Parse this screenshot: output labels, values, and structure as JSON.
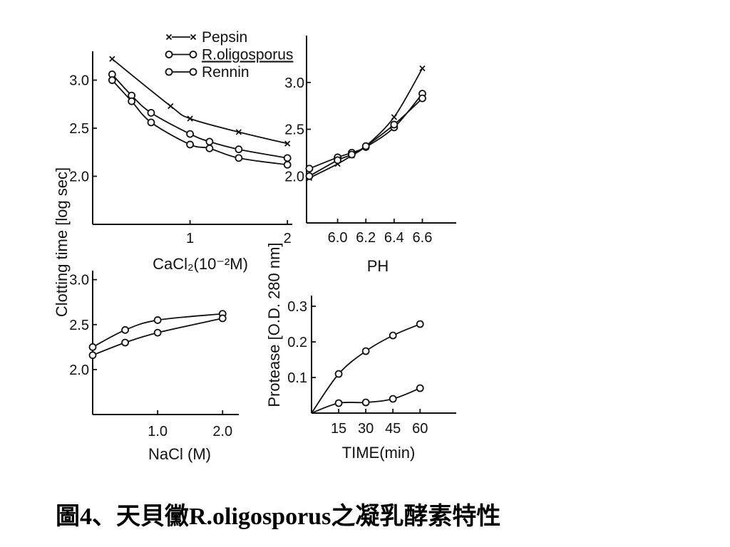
{
  "figure": {
    "shared_ylabel": "Clotting time [log sec]",
    "caption": "圖4、天貝黴R.oligosporus之凝乳酵素特性",
    "ink_color": "#111111",
    "background": "#ffffff"
  },
  "chart_data": [
    {
      "type": "line",
      "xlabel": "CaCl₂(10⁻²M)",
      "xlim": [
        0,
        2.05
      ],
      "ylim": [
        1.5,
        3.3
      ],
      "xticks": [
        1,
        2
      ],
      "xtick_labels": [
        "1",
        "2"
      ],
      "yticks": [
        2.0,
        2.5,
        3.0
      ],
      "ytick_labels": [
        "2.0",
        "2.5",
        "3.0"
      ],
      "grid": false,
      "legend": "top",
      "series": [
        {
          "name": "Pepsin",
          "marker": "x",
          "x": [
            0.2,
            0.8,
            1.0,
            1.5,
            2.0
          ],
          "y": [
            3.22,
            2.73,
            2.6,
            2.46,
            2.34
          ]
        },
        {
          "name": "R.oligosporus",
          "marker": "o",
          "x": [
            0.2,
            0.4,
            0.6,
            1.0,
            1.2,
            1.5,
            2.0
          ],
          "y": [
            3.06,
            2.84,
            2.66,
            2.44,
            2.36,
            2.28,
            2.19
          ]
        },
        {
          "name": "Rennin",
          "marker": "o",
          "x": [
            0.2,
            0.4,
            0.6,
            1.0,
            1.2,
            1.5,
            2.0
          ],
          "y": [
            3.0,
            2.78,
            2.56,
            2.33,
            2.29,
            2.19,
            2.12
          ]
        }
      ]
    },
    {
      "type": "line",
      "xlabel": "PH",
      "xlim": [
        5.78,
        6.84
      ],
      "ylim": [
        1.5,
        3.5
      ],
      "xticks": [
        6.0,
        6.2,
        6.4,
        6.6
      ],
      "xtick_labels": [
        "6.0",
        "6.2",
        "6.4",
        "6.6"
      ],
      "yticks": [
        2.0,
        2.5,
        3.0
      ],
      "ytick_labels": [
        "2.0",
        "2.5",
        "3.0"
      ],
      "grid": false,
      "series": [
        {
          "marker": "x",
          "x": [
            5.8,
            6.0,
            6.1,
            6.2,
            6.4,
            6.6
          ],
          "y": [
            1.98,
            2.13,
            2.22,
            2.32,
            2.63,
            3.15
          ]
        },
        {
          "marker": "o",
          "x": [
            5.8,
            6.0,
            6.1,
            6.2,
            6.4,
            6.6
          ],
          "y": [
            2.08,
            2.2,
            2.25,
            2.31,
            2.52,
            2.88
          ]
        },
        {
          "marker": "o",
          "x": [
            5.8,
            6.0,
            6.1,
            6.2,
            6.4,
            6.6
          ],
          "y": [
            2.0,
            2.17,
            2.23,
            2.32,
            2.55,
            2.83
          ]
        }
      ]
    },
    {
      "type": "line",
      "xlabel": "NaCl (M)",
      "xlim": [
        0,
        2.25
      ],
      "ylim": [
        1.5,
        3.1
      ],
      "xticks": [
        1.0,
        2.0
      ],
      "xtick_labels": [
        "1.0",
        "2.0"
      ],
      "yticks": [
        2.0,
        2.5,
        3.0
      ],
      "ytick_labels": [
        "2.0",
        "2.5",
        "3.0"
      ],
      "grid": false,
      "series": [
        {
          "marker": "o",
          "x": [
            0,
            0.5,
            1.0,
            2.0
          ],
          "y": [
            2.25,
            2.44,
            2.55,
            2.62
          ]
        },
        {
          "marker": "o",
          "x": [
            0,
            0.5,
            1.0,
            2.0
          ],
          "y": [
            2.16,
            2.3,
            2.41,
            2.57
          ]
        }
      ]
    },
    {
      "type": "line",
      "xlabel": "TIME(min)",
      "ylabel": "Protease [O.D. 280 nm]",
      "xlim": [
        0,
        80
      ],
      "ylim": [
        0,
        0.33
      ],
      "xticks": [
        15,
        30,
        45,
        60
      ],
      "xtick_labels": [
        "15",
        "30",
        "45",
        "60"
      ],
      "yticks": [
        0.1,
        0.2,
        0.3
      ],
      "ytick_labels": [
        "0.1",
        "0.2",
        "0.3"
      ],
      "grid": false,
      "series": [
        {
          "marker": "o",
          "x": [
            0,
            15,
            30,
            45,
            60
          ],
          "y": [
            0,
            0.11,
            0.174,
            0.218,
            0.25
          ]
        },
        {
          "marker": "o",
          "x": [
            0,
            15,
            30,
            45,
            60
          ],
          "y": [
            0,
            0.028,
            0.03,
            0.04,
            0.07
          ]
        }
      ]
    }
  ]
}
